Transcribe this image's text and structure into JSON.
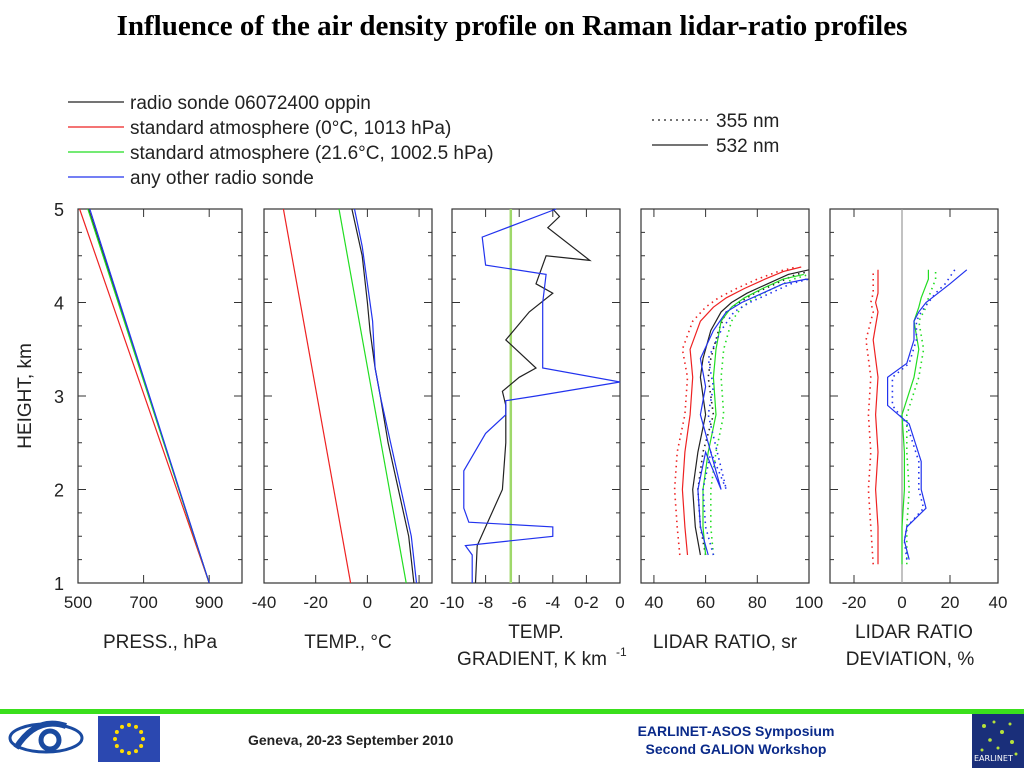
{
  "title": "Influence of the air density profile on Raman lidar-ratio profiles",
  "legend_left": [
    {
      "label": "radio sonde 06072400 oppin",
      "color": "#222222"
    },
    {
      "label": "standard atmosphere (0°C, 1013 hPa)",
      "color": "#ee2222"
    },
    {
      "label": "standard atmosphere (21.6°C, 1002.5 hPa)",
      "color": "#22dd22"
    },
    {
      "label": "any other radio sonde",
      "color": "#2233ee"
    }
  ],
  "legend_right": [
    {
      "label": "355 nm",
      "dash": "dotted"
    },
    {
      "label": "532 nm",
      "dash": "solid"
    }
  ],
  "ylabel": "HEIGHT, km",
  "footer": {
    "date": "Geneva, 20-23 September 2010",
    "event_line1": "EARLINET-ASOS Symposium",
    "event_line2": "Second GALION Workshop",
    "logo_text": "EARLINET"
  },
  "chart_data": [
    {
      "type": "line",
      "xlabel": "PRESS., hPa",
      "xlim": [
        500,
        1000
      ],
      "ylim": [
        1,
        5
      ],
      "xticks": [
        "500",
        "700",
        "900"
      ],
      "yticks": [
        "1",
        "2",
        "3",
        "4",
        "5"
      ],
      "series": [
        {
          "name": "radio sonde 06072400 oppin",
          "color": "#222222",
          "dash": "solid",
          "x": [
            900,
            532
          ],
          "y": [
            1,
            5
          ]
        },
        {
          "name": "standard atmosphere (0°C, 1013 hPa)",
          "color": "#ee2222",
          "dash": "solid",
          "x": [
            900,
            505
          ],
          "y": [
            1,
            5
          ]
        },
        {
          "name": "standard atmosphere (21.6°C, 1002.5 hPa)",
          "color": "#22dd22",
          "dash": "solid",
          "x": [
            900,
            530
          ],
          "y": [
            1,
            5
          ]
        },
        {
          "name": "any other radio sonde",
          "color": "#2233ee",
          "dash": "solid",
          "x": [
            900,
            536
          ],
          "y": [
            1,
            5
          ]
        }
      ]
    },
    {
      "type": "line",
      "xlabel": "TEMP., °C",
      "xlim": [
        -40,
        25
      ],
      "ylim": [
        1,
        5
      ],
      "xticks": [
        "-40",
        "-20",
        "0",
        "20"
      ],
      "series": [
        {
          "name": "radio sonde 06072400 oppin",
          "color": "#222222",
          "dash": "solid",
          "x": [
            18,
            16,
            12,
            8,
            5,
            3,
            1,
            0,
            -2,
            -6
          ],
          "y": [
            1,
            1.5,
            2,
            2.5,
            3,
            3.3,
            3.7,
            4,
            4.5,
            5
          ]
        },
        {
          "name": "standard atmosphere (0°C, 1013 hPa)",
          "color": "#ee2222",
          "dash": "solid",
          "x": [
            -6.5,
            -32.5
          ],
          "y": [
            1,
            5
          ]
        },
        {
          "name": "standard atmosphere (21.6°C, 1002.5 hPa)",
          "color": "#22dd22",
          "dash": "solid",
          "x": [
            15,
            -11
          ],
          "y": [
            1,
            5
          ]
        },
        {
          "name": "any other radio sonde",
          "color": "#2233ee",
          "dash": "solid",
          "x": [
            19,
            17,
            13,
            9,
            5,
            3,
            2,
            0,
            -2,
            -5
          ],
          "y": [
            1,
            1.5,
            2,
            2.5,
            3,
            3.3,
            3.8,
            4.2,
            4.6,
            5
          ]
        }
      ]
    },
    {
      "type": "line",
      "xlabel": "TEMP.",
      "xlabel2": "GRADIENT, K km",
      "xlabel_sup": "-1",
      "xlim": [
        -10,
        0
      ],
      "ylim": [
        1,
        5
      ],
      "xticks": [
        "-10",
        "-8",
        "-6",
        "-4",
        "0-2",
        "0"
      ],
      "xtick_values": [
        -10,
        -8,
        -6,
        -4,
        -2,
        0
      ],
      "series": [
        {
          "name": "standard atmosphere",
          "color": "#9fd86a",
          "dash": "solid",
          "x": [
            -6.5,
            -6.5
          ],
          "y": [
            1,
            5
          ]
        },
        {
          "name": "radio sonde 06072400 oppin",
          "color": "#222222",
          "dash": "solid",
          "x": [
            -8.6,
            -8.5,
            -8.0,
            -7.0,
            -6.8,
            -6.8,
            -7.0,
            -6.0,
            -5.0,
            -6.8,
            -5.4,
            -4.0,
            -5.0,
            -4.4,
            -1.8,
            -4.3,
            -3.6,
            -4.0
          ],
          "y": [
            1.0,
            1.4,
            1.6,
            2.0,
            2.5,
            2.9,
            3.05,
            3.2,
            3.3,
            3.6,
            3.9,
            4.1,
            4.2,
            4.5,
            4.45,
            4.8,
            4.92,
            5.0
          ]
        },
        {
          "name": "any other radio sonde",
          "color": "#2233ee",
          "dash": "solid",
          "x": [
            -8.8,
            -8.8,
            -9.2,
            -4.0,
            -4.0,
            -9.0,
            -9.3,
            -9.3,
            -8.0,
            -6.8,
            -6.8,
            -5.0,
            0.0,
            -4.6,
            -4.6,
            -4.4,
            -8.0,
            -8.2,
            -3.8
          ],
          "y": [
            1.0,
            1.3,
            1.4,
            1.5,
            1.6,
            1.65,
            1.8,
            2.2,
            2.6,
            2.8,
            2.95,
            3.0,
            3.15,
            3.3,
            4.0,
            4.3,
            4.4,
            4.7,
            5.0
          ]
        }
      ]
    },
    {
      "type": "line",
      "xlabel": "LIDAR RATIO, sr",
      "xlim": [
        35,
        100
      ],
      "ylim": [
        1,
        5
      ],
      "xticks": [
        "40",
        "60",
        "80",
        "100"
      ],
      "xtick_values": [
        40,
        60,
        80,
        100
      ],
      "series": [
        {
          "name": "radio sonde 532 nm",
          "color": "#222222",
          "dash": "solid",
          "x": [
            58,
            56,
            55,
            57,
            60,
            58,
            59,
            62,
            66,
            70,
            76,
            84,
            92,
            100
          ],
          "y": [
            1.3,
            1.6,
            2.0,
            2.4,
            2.8,
            3.2,
            3.4,
            3.7,
            3.9,
            4.0,
            4.1,
            4.2,
            4.3,
            4.35
          ]
        },
        {
          "name": "radio sonde 355 nm",
          "color": "#222222",
          "dash": "dotted",
          "x": [
            60,
            58,
            57,
            59,
            63,
            61,
            62,
            65,
            68,
            73,
            79,
            87,
            95,
            100
          ],
          "y": [
            1.3,
            1.6,
            2.0,
            2.4,
            2.8,
            3.2,
            3.4,
            3.7,
            3.9,
            4.0,
            4.1,
            4.2,
            4.3,
            4.33
          ]
        },
        {
          "name": "standard atmosphere (0°C) 532 nm",
          "color": "#ee2222",
          "dash": "solid",
          "x": [
            53,
            52,
            51,
            52,
            54,
            55,
            54,
            58,
            63,
            68,
            75,
            83,
            90,
            97
          ],
          "y": [
            1.3,
            1.6,
            2.0,
            2.4,
            2.8,
            3.2,
            3.5,
            3.8,
            3.95,
            4.05,
            4.15,
            4.25,
            4.33,
            4.38
          ]
        },
        {
          "name": "standard atmosphere (0°C) 355 nm",
          "color": "#ee2222",
          "dash": "dotted",
          "x": [
            50,
            49,
            48,
            49,
            52,
            53,
            51,
            55,
            60,
            65,
            72,
            80,
            88,
            95
          ],
          "y": [
            1.3,
            1.6,
            2.0,
            2.4,
            2.8,
            3.2,
            3.5,
            3.8,
            3.95,
            4.05,
            4.15,
            4.25,
            4.33,
            4.38
          ]
        },
        {
          "name": "standard atmosphere (21.6°C) 532 nm",
          "color": "#22dd22",
          "dash": "solid",
          "x": [
            60,
            59,
            59,
            61,
            64,
            63,
            64,
            66,
            70,
            75,
            82,
            90,
            98
          ],
          "y": [
            1.3,
            1.6,
            2.0,
            2.4,
            2.8,
            3.2,
            3.5,
            3.8,
            3.95,
            4.05,
            4.15,
            4.25,
            4.3
          ]
        },
        {
          "name": "standard atmosphere (21.6°C) 355 nm",
          "color": "#22dd22",
          "dash": "dotted",
          "x": [
            63,
            62,
            62,
            64,
            67,
            66,
            67,
            70,
            74,
            79,
            86,
            94,
            100
          ],
          "y": [
            1.3,
            1.6,
            2.0,
            2.4,
            2.8,
            3.2,
            3.5,
            3.8,
            3.95,
            4.05,
            4.15,
            4.25,
            4.3
          ]
        },
        {
          "name": "any other radio sonde 532 nm",
          "color": "#2233ee",
          "dash": "solid",
          "x": [
            61,
            58,
            57,
            60,
            66,
            58,
            60,
            58,
            63,
            68,
            74,
            82,
            90,
            99
          ],
          "y": [
            1.3,
            1.6,
            2.0,
            2.4,
            2.0,
            2.8,
            3.1,
            3.4,
            3.7,
            3.9,
            4.0,
            4.1,
            4.2,
            4.25
          ]
        },
        {
          "name": "any other radio sonde 355 nm",
          "color": "#2233ee",
          "dash": "dotted",
          "x": [
            63,
            60,
            59,
            62,
            68,
            61,
            63,
            61,
            66,
            71,
            77,
            85,
            93,
            100
          ],
          "y": [
            1.3,
            1.6,
            2.0,
            2.4,
            2.0,
            2.8,
            3.1,
            3.4,
            3.7,
            3.9,
            4.0,
            4.1,
            4.2,
            4.25
          ]
        }
      ]
    },
    {
      "type": "line",
      "xlabel": "LIDAR RATIO",
      "xlabel2": "DEVIATION, %",
      "xlim": [
        -30,
        40
      ],
      "ylim": [
        1,
        5
      ],
      "xticks": [
        "-20",
        "0",
        "20",
        "40"
      ],
      "xtick_values": [
        -20,
        0,
        20,
        40
      ],
      "series": [
        {
          "name": "zero line",
          "color": "#999999",
          "dash": "solid",
          "x": [
            0,
            0
          ],
          "y": [
            1,
            5
          ]
        },
        {
          "name": "standard atmosphere (0°C) 532 nm",
          "color": "#ee2222",
          "dash": "solid",
          "x": [
            -10,
            -10,
            -11,
            -10,
            -11,
            -10,
            -12,
            -10,
            -11,
            -10,
            -10,
            -10
          ],
          "y": [
            1.2,
            1.6,
            2.0,
            2.4,
            2.8,
            3.2,
            3.6,
            3.9,
            4.0,
            4.1,
            4.25,
            4.35
          ]
        },
        {
          "name": "standard atmosphere (0°C) 355 nm",
          "color": "#ee2222",
          "dash": "dotted",
          "x": [
            -12,
            -13,
            -14,
            -13,
            -14,
            -13,
            -15,
            -12,
            -13,
            -12,
            -12,
            -12
          ],
          "y": [
            1.2,
            1.6,
            2.0,
            2.4,
            2.8,
            3.2,
            3.6,
            3.9,
            4.0,
            4.1,
            4.25,
            4.35
          ]
        },
        {
          "name": "standard atmosphere (21.6°C) 532 nm",
          "color": "#22dd22",
          "dash": "solid",
          "x": [
            0,
            0,
            1,
            1,
            0,
            5,
            7,
            5,
            7,
            8,
            11,
            11
          ],
          "y": [
            1.2,
            1.6,
            2.0,
            2.4,
            2.8,
            3.2,
            3.5,
            3.8,
            3.95,
            4.05,
            4.25,
            4.35
          ]
        },
        {
          "name": "standard atmosphere (21.6°C) 355 nm",
          "color": "#22dd22",
          "dash": "dotted",
          "x": [
            2,
            2,
            3,
            2,
            2,
            7,
            9,
            7,
            10,
            11,
            14,
            14
          ],
          "y": [
            1.2,
            1.6,
            2.0,
            2.4,
            2.8,
            3.2,
            3.5,
            3.8,
            3.95,
            4.05,
            4.25,
            4.35
          ]
        },
        {
          "name": "any other radio sonde 532 nm",
          "color": "#2233ee",
          "dash": "solid",
          "x": [
            3,
            1,
            2,
            10,
            8,
            8,
            3,
            -6,
            -6,
            2,
            5,
            5,
            7,
            10,
            15,
            20,
            27
          ],
          "y": [
            1.25,
            1.45,
            1.6,
            1.8,
            2.0,
            2.3,
            2.7,
            2.9,
            3.2,
            3.35,
            3.6,
            3.8,
            3.9,
            4.0,
            4.1,
            4.2,
            4.35
          ]
        },
        {
          "name": "any other radio sonde 355 nm",
          "color": "#2233ee",
          "dash": "dotted",
          "x": [
            2,
            1,
            2,
            9,
            7,
            7,
            2,
            -4,
            -4,
            3,
            6,
            6,
            8,
            11,
            14,
            18,
            22
          ],
          "y": [
            1.25,
            1.45,
            1.6,
            1.8,
            2.0,
            2.3,
            2.7,
            2.9,
            3.2,
            3.35,
            3.6,
            3.8,
            3.9,
            4.0,
            4.1,
            4.2,
            4.35
          ]
        }
      ]
    }
  ]
}
